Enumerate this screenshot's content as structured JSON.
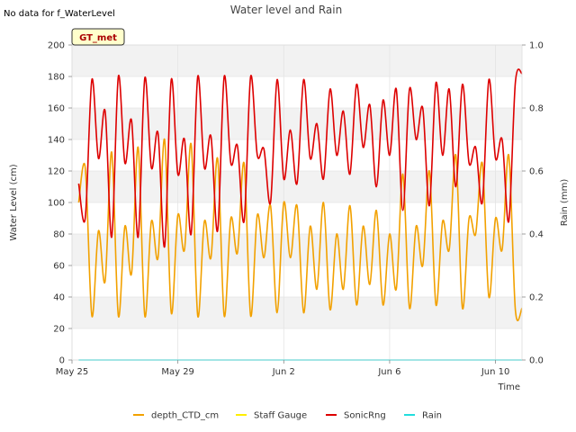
{
  "chart_data": {
    "type": "line",
    "title": "Water level and Rain",
    "note": "No data for f_WaterLevel",
    "badge": "GT_met",
    "xlabel": "Time",
    "ylabel": "Water Level (cm)",
    "y2label": "Rain (mm)",
    "ylim": [
      0,
      200
    ],
    "y2lim": [
      0,
      1.0
    ],
    "xlim": [
      "2024-05-25",
      "2024-06-11"
    ],
    "x_ticks": [
      "May 25",
      "May 29",
      "Jun 2",
      "Jun 6",
      "Jun 10"
    ],
    "y_ticks": [
      "0",
      "20",
      "40",
      "60",
      "80",
      "100",
      "120",
      "140",
      "160",
      "180",
      "200"
    ],
    "y2_ticks": [
      "0.0",
      "0.2",
      "0.4",
      "0.6",
      "0.8",
      "1.0"
    ],
    "bands": [
      [
        20,
        40
      ],
      [
        60,
        80
      ],
      [
        100,
        120
      ],
      [
        140,
        160
      ],
      [
        180,
        200
      ]
    ],
    "grid": true,
    "legend_position": "bottom",
    "colors": {
      "depth_CTD_cm": "#f2a100",
      "Staff Gauge": "#ffee00",
      "SonicRng": "#dd0000",
      "Rain": "#22dddd",
      "band": "#f2f2f2",
      "badge_bg": "#ffffcc"
    },
    "series": [
      {
        "name": "SonicRng",
        "axis": "left",
        "x": [
          "2024-05-25T06:00",
          "2024-05-25T12:00",
          "2024-05-25T18:00",
          "2024-05-26T00:00",
          "2024-05-26T06:00",
          "2024-05-26T12:00",
          "2024-05-26T18:00",
          "2024-05-27T00:00",
          "2024-05-27T06:00",
          "2024-05-27T12:00",
          "2024-05-27T18:00",
          "2024-05-28T00:00",
          "2024-05-28T06:00",
          "2024-05-28T12:00",
          "2024-05-28T18:00",
          "2024-05-29T00:00",
          "2024-05-29T06:00",
          "2024-05-29T12:00",
          "2024-05-29T18:00",
          "2024-05-30T00:00",
          "2024-05-30T06:00",
          "2024-05-30T12:00",
          "2024-05-30T18:00",
          "2024-05-31T00:00",
          "2024-05-31T06:00",
          "2024-05-31T12:00",
          "2024-05-31T18:00",
          "2024-06-01T00:00",
          "2024-06-01T06:00",
          "2024-06-01T12:00",
          "2024-06-01T18:00",
          "2024-06-02T00:00",
          "2024-06-02T06:00",
          "2024-06-02T12:00",
          "2024-06-02T18:00",
          "2024-06-03T00:00",
          "2024-06-03T06:00",
          "2024-06-03T12:00",
          "2024-06-03T18:00",
          "2024-06-04T00:00",
          "2024-06-04T06:00",
          "2024-06-04T12:00",
          "2024-06-04T18:00",
          "2024-06-05T00:00",
          "2024-06-05T06:00",
          "2024-06-05T12:00",
          "2024-06-05T18:00",
          "2024-06-06T00:00",
          "2024-06-06T06:00",
          "2024-06-06T12:00",
          "2024-06-06T18:00",
          "2024-06-07T00:00",
          "2024-06-07T06:00",
          "2024-06-07T12:00",
          "2024-06-07T18:00",
          "2024-06-08T00:00",
          "2024-06-08T06:00",
          "2024-06-08T12:00",
          "2024-06-08T18:00",
          "2024-06-09T00:00",
          "2024-06-09T06:00",
          "2024-06-09T12:00",
          "2024-06-09T18:00",
          "2024-06-10T00:00",
          "2024-06-10T06:00",
          "2024-06-10T12:00",
          "2024-06-10T18:00",
          "2024-06-11T00:00"
        ],
        "y": [
          112,
          90,
          178,
          128,
          158,
          78,
          180,
          125,
          152,
          78,
          179,
          122,
          144,
          72,
          178,
          118,
          140,
          80,
          180,
          122,
          142,
          82,
          180,
          125,
          136,
          88,
          180,
          130,
          134,
          100,
          178,
          115,
          146,
          112,
          178,
          128,
          150,
          115,
          172,
          130,
          158,
          118,
          175,
          135,
          162,
          110,
          165,
          130,
          172,
          95,
          172,
          140,
          160,
          98,
          176,
          130,
          172,
          110,
          175,
          125,
          135,
          100,
          178,
          128,
          140,
          88,
          176,
          182
        ]
      },
      {
        "name": "depth_CTD_cm",
        "axis": "left",
        "x": [
          "2024-05-25T06:00",
          "2024-05-25T12:00",
          "2024-05-25T18:00",
          "2024-05-26T00:00",
          "2024-05-26T06:00",
          "2024-05-26T12:00",
          "2024-05-26T18:00",
          "2024-05-27T00:00",
          "2024-05-27T06:00",
          "2024-05-27T12:00",
          "2024-05-27T18:00",
          "2024-05-28T00:00",
          "2024-05-28T06:00",
          "2024-05-28T12:00",
          "2024-05-28T18:00",
          "2024-05-29T00:00",
          "2024-05-29T06:00",
          "2024-05-29T12:00",
          "2024-05-29T18:00",
          "2024-05-30T00:00",
          "2024-05-30T06:00",
          "2024-05-30T12:00",
          "2024-05-30T18:00",
          "2024-05-31T00:00",
          "2024-05-31T06:00",
          "2024-05-31T12:00",
          "2024-05-31T18:00",
          "2024-06-01T00:00",
          "2024-06-01T06:00",
          "2024-06-01T12:00",
          "2024-06-01T18:00",
          "2024-06-02T00:00",
          "2024-06-02T06:00",
          "2024-06-02T12:00",
          "2024-06-02T18:00",
          "2024-06-03T00:00",
          "2024-06-03T06:00",
          "2024-06-03T12:00",
          "2024-06-03T18:00",
          "2024-06-04T00:00",
          "2024-06-04T06:00",
          "2024-06-04T12:00",
          "2024-06-04T18:00",
          "2024-06-05T00:00",
          "2024-06-05T06:00",
          "2024-06-05T12:00",
          "2024-06-05T18:00",
          "2024-06-06T00:00",
          "2024-06-06T06:00",
          "2024-06-06T12:00",
          "2024-06-06T18:00",
          "2024-06-07T00:00",
          "2024-06-07T06:00",
          "2024-06-07T12:00",
          "2024-06-07T18:00",
          "2024-06-08T00:00",
          "2024-06-08T06:00",
          "2024-06-08T12:00",
          "2024-06-08T18:00",
          "2024-06-09T00:00",
          "2024-06-09T06:00",
          "2024-06-09T12:00",
          "2024-06-09T18:00",
          "2024-06-10T00:00",
          "2024-06-10T06:00",
          "2024-06-10T12:00",
          "2024-06-10T18:00",
          "2024-06-11T00:00"
        ],
        "y": [
          100,
          122,
          28,
          82,
          50,
          132,
          28,
          85,
          55,
          135,
          28,
          88,
          65,
          140,
          30,
          92,
          70,
          137,
          28,
          88,
          65,
          128,
          28,
          90,
          68,
          125,
          28,
          92,
          65,
          98,
          30,
          100,
          65,
          98,
          30,
          85,
          45,
          100,
          32,
          80,
          45,
          98,
          35,
          85,
          48,
          95,
          35,
          80,
          45,
          118,
          33,
          85,
          60,
          120,
          35,
          88,
          70,
          130,
          33,
          90,
          80,
          125,
          40,
          90,
          70,
          130,
          32,
          33
        ]
      },
      {
        "name": "Staff Gauge",
        "axis": "left",
        "x": [],
        "y": []
      },
      {
        "name": "Rain",
        "axis": "right",
        "x": [
          "2024-05-25T06:00",
          "2024-06-11T00:00"
        ],
        "y": [
          0,
          0
        ]
      }
    ]
  }
}
